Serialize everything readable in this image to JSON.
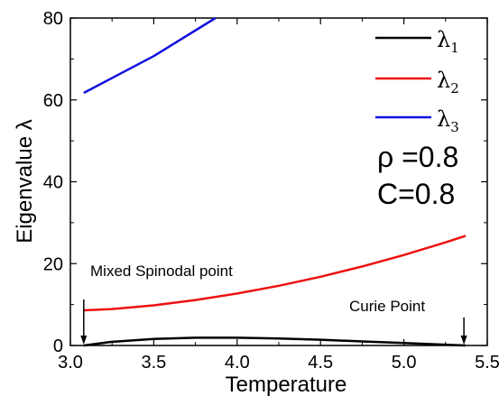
{
  "chart_data": {
    "type": "line",
    "xlabel": "Temperature",
    "ylabel": "Eigenvalue λ",
    "xlim": [
      3.0,
      5.5
    ],
    "ylim": [
      0,
      80
    ],
    "x_ticks": [
      "3.0",
      "3.5",
      "4.0",
      "4.5",
      "5.0",
      "5.5"
    ],
    "y_ticks": [
      "0",
      "20",
      "40",
      "60",
      "80"
    ],
    "grid": false,
    "legend_position": "top-right",
    "series": [
      {
        "name": "λ1",
        "symbol": "λ",
        "subscript": "1",
        "color": "#000000",
        "x": [
          3.08,
          3.25,
          3.5,
          3.75,
          4.0,
          4.25,
          4.5,
          4.75,
          5.0,
          5.25,
          5.37
        ],
        "y": [
          0.0,
          0.9,
          1.6,
          1.9,
          1.9,
          1.7,
          1.4,
          1.0,
          0.6,
          0.2,
          0.0
        ]
      },
      {
        "name": "λ2",
        "symbol": "λ",
        "subscript": "2",
        "color": "#ee1111",
        "x": [
          3.08,
          3.25,
          3.5,
          3.75,
          4.0,
          4.25,
          4.5,
          4.75,
          5.0,
          5.25,
          5.37
        ],
        "y": [
          8.6,
          8.9,
          9.8,
          11.1,
          12.7,
          14.6,
          16.8,
          19.3,
          22.1,
          25.2,
          26.8
        ]
      },
      {
        "name": "λ3",
        "symbol": "λ",
        "subscript": "3",
        "color": "#1111dd",
        "x": [
          3.08,
          3.5,
          3.87
        ],
        "y": [
          61.7,
          70.7,
          80.0
        ]
      }
    ],
    "parameters": [
      "ρ =0.8",
      "C=0.8"
    ],
    "annotations": [
      {
        "text": "Mixed Spinodal point",
        "arrow_x": 3.08
      },
      {
        "text": "Curie Point",
        "arrow_x": 5.36
      }
    ]
  }
}
